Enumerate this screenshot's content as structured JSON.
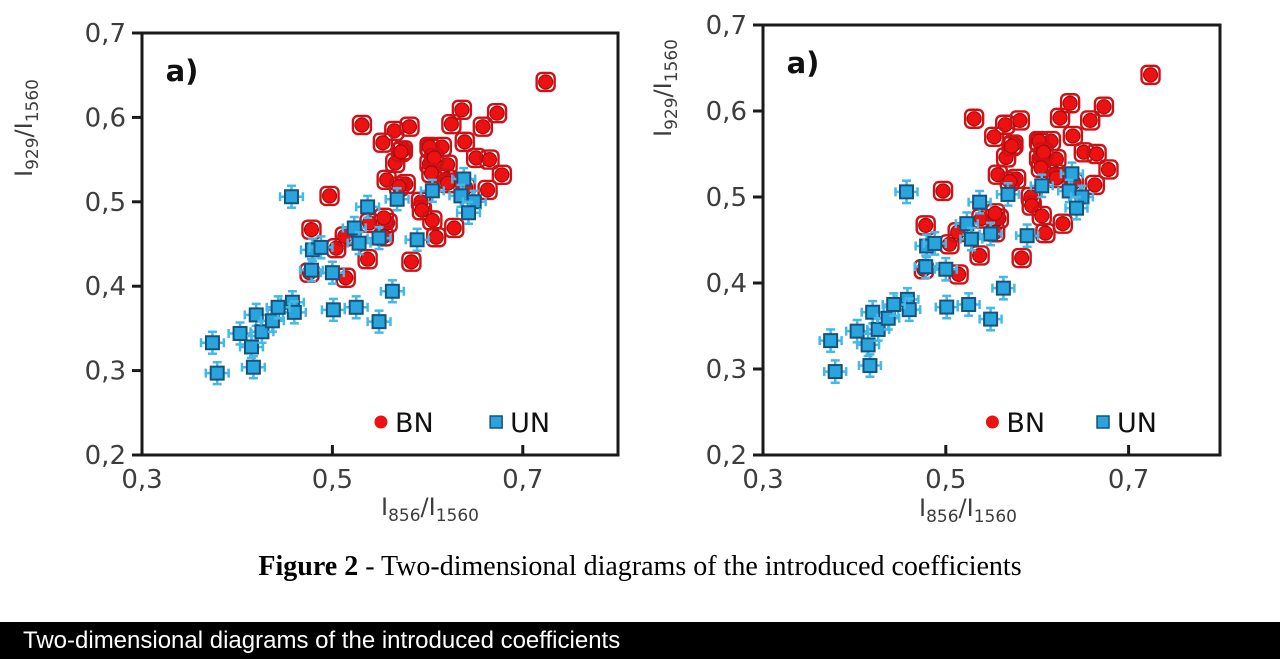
{
  "figure": {
    "caption_bold": "Figure 2",
    "caption_rest": " - Two-dimensional diagrams of the introduced coefficients"
  },
  "status_bar": {
    "text": "Two-dimensional diagrams of the introduced coefficients"
  },
  "colors": {
    "bn_fill": "#ee1111",
    "bn_edge": "#a50c0e",
    "bn_errorbar": "#cf1014",
    "un_fill": "#29a4dd",
    "un_edge": "#14537f",
    "un_errorbar": "#45b8e8",
    "axis": "#1a1a1a",
    "tick_text": "#3d3d3d",
    "label_text": "#111111",
    "bar_bg": "#000000",
    "bar_text": "#ffffff"
  },
  "chart_data": {
    "type": "scatter",
    "num_panels": 2,
    "panels_identical": true,
    "panel_label": "a)",
    "xlabel": "I856/I1560",
    "ylabel": "I929/I1560",
    "xlabel_parts": {
      "p1": "I",
      "s1": "856",
      "p2": "/I",
      "s2": "1560"
    },
    "ylabel_parts": {
      "p1": "I",
      "s1": "929",
      "p2": "/I",
      "s2": "1560"
    },
    "xlim": [
      0.3,
      0.8
    ],
    "ylim": [
      0.2,
      0.7
    ],
    "decimal_separator": ",",
    "grid": false,
    "legend_position": "inside bottom",
    "xticks": [
      {
        "v": 0.3,
        "label": "0,3"
      },
      {
        "v": 0.5,
        "label": "0,5"
      },
      {
        "v": 0.7,
        "label": "0,7"
      }
    ],
    "yticks": [
      {
        "v": 0.7,
        "label": "0,7"
      },
      {
        "v": 0.6,
        "label": "0,6"
      },
      {
        "v": 0.5,
        "label": "0,5"
      },
      {
        "v": 0.4,
        "label": "0,4"
      },
      {
        "v": 0.3,
        "label": "0,3"
      },
      {
        "v": 0.2,
        "label": "0,2"
      }
    ],
    "legend": [
      {
        "name": "BN",
        "marker": "circle"
      },
      {
        "name": "UN",
        "marker": "square"
      }
    ],
    "series": [
      {
        "name": "BN",
        "marker": "circle",
        "points": [
          [
            0.724,
            0.642
          ],
          [
            0.531,
            0.591
          ],
          [
            0.565,
            0.584
          ],
          [
            0.581,
            0.589
          ],
          [
            0.553,
            0.57
          ],
          [
            0.636,
            0.609
          ],
          [
            0.673,
            0.605
          ],
          [
            0.658,
            0.589
          ],
          [
            0.625,
            0.592
          ],
          [
            0.603,
            0.563
          ],
          [
            0.615,
            0.565
          ],
          [
            0.574,
            0.561
          ],
          [
            0.639,
            0.571
          ],
          [
            0.651,
            0.552
          ],
          [
            0.665,
            0.55
          ],
          [
            0.566,
            0.546
          ],
          [
            0.602,
            0.545
          ],
          [
            0.621,
            0.544
          ],
          [
            0.577,
            0.521
          ],
          [
            0.557,
            0.526
          ],
          [
            0.62,
            0.527
          ],
          [
            0.678,
            0.532
          ],
          [
            0.663,
            0.514
          ],
          [
            0.497,
            0.507
          ],
          [
            0.539,
            0.475
          ],
          [
            0.558,
            0.475
          ],
          [
            0.572,
            0.559
          ],
          [
            0.602,
            0.565
          ],
          [
            0.607,
            0.552
          ],
          [
            0.57,
            0.518
          ],
          [
            0.604,
            0.534
          ],
          [
            0.593,
            0.5
          ],
          [
            0.621,
            0.522
          ],
          [
            0.64,
            0.517
          ],
          [
            0.594,
            0.49
          ],
          [
            0.554,
            0.481
          ],
          [
            0.605,
            0.478
          ],
          [
            0.628,
            0.469
          ],
          [
            0.609,
            0.458
          ],
          [
            0.478,
            0.467
          ],
          [
            0.504,
            0.445
          ],
          [
            0.513,
            0.459
          ],
          [
            0.554,
            0.459
          ],
          [
            0.476,
            0.416
          ],
          [
            0.514,
            0.41
          ],
          [
            0.537,
            0.432
          ],
          [
            0.583,
            0.429
          ]
        ]
      },
      {
        "name": "UN",
        "marker": "square",
        "error_x": 0.012,
        "error_y": 0.013,
        "points": [
          [
            0.457,
            0.506
          ],
          [
            0.537,
            0.494
          ],
          [
            0.568,
            0.503
          ],
          [
            0.605,
            0.513
          ],
          [
            0.638,
            0.527
          ],
          [
            0.635,
            0.507
          ],
          [
            0.649,
            0.5
          ],
          [
            0.643,
            0.487
          ],
          [
            0.523,
            0.469
          ],
          [
            0.549,
            0.457
          ],
          [
            0.528,
            0.451
          ],
          [
            0.589,
            0.455
          ],
          [
            0.479,
            0.443
          ],
          [
            0.488,
            0.446
          ],
          [
            0.478,
            0.419
          ],
          [
            0.5,
            0.416
          ],
          [
            0.374,
            0.333
          ],
          [
            0.379,
            0.297
          ],
          [
            0.403,
            0.344
          ],
          [
            0.415,
            0.328
          ],
          [
            0.42,
            0.366
          ],
          [
            0.426,
            0.346
          ],
          [
            0.417,
            0.304
          ],
          [
            0.437,
            0.359
          ],
          [
            0.458,
            0.381
          ],
          [
            0.46,
            0.369
          ],
          [
            0.501,
            0.372
          ],
          [
            0.525,
            0.375
          ],
          [
            0.563,
            0.394
          ],
          [
            0.549,
            0.358
          ],
          [
            0.443,
            0.375
          ]
        ]
      }
    ]
  }
}
